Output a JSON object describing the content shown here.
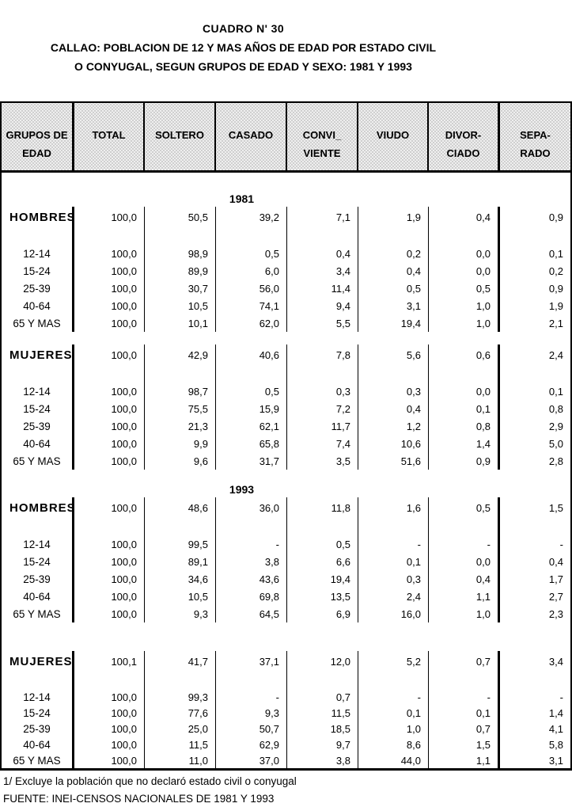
{
  "title": {
    "line1": "CUADRO N' 30",
    "line2": "CALLAO: POBLACION DE 12 Y MAS AÑOS DE EDAD POR ESTADO CIVIL",
    "line3": "O CONYUGAL, SEGUN GRUPOS DE EDAD Y SEXO: 1981 Y 1993"
  },
  "table": {
    "columns": [
      "GRUPOS DE\nEDAD",
      "TOTAL",
      "SOLTERO",
      "CASADO",
      "CONVI_\nVIENTE",
      "VIUDO",
      "DIVOR-\nCIADO",
      "SEPA-\nRADO"
    ],
    "sections": [
      {
        "year": "1981",
        "groups": [
          {
            "label": "HOMBRES",
            "values": [
              "100,0",
              "50,5",
              "39,2",
              "7,1",
              "1,9",
              "0,4",
              "0,9"
            ],
            "ages": [
              {
                "label": "12-14",
                "values": [
                  "100,0",
                  "98,9",
                  "0,5",
                  "0,4",
                  "0,2",
                  "0,0",
                  "0,1"
                ]
              },
              {
                "label": "15-24",
                "values": [
                  "100,0",
                  "89,9",
                  "6,0",
                  "3,4",
                  "0,4",
                  "0,0",
                  "0,2"
                ]
              },
              {
                "label": "25-39",
                "values": [
                  "100,0",
                  "30,7",
                  "56,0",
                  "11,4",
                  "0,5",
                  "0,5",
                  "0,9"
                ]
              },
              {
                "label": "40-64",
                "values": [
                  "100,0",
                  "10,5",
                  "74,1",
                  "9,4",
                  "3,1",
                  "1,0",
                  "1,9"
                ]
              },
              {
                "label": "65 Y MAS",
                "values": [
                  "100,0",
                  "10,1",
                  "62,0",
                  "5,5",
                  "19,4",
                  "1,0",
                  "2,1"
                ]
              }
            ]
          },
          {
            "label": "MUJERES",
            "values": [
              "100,0",
              "42,9",
              "40,6",
              "7,8",
              "5,6",
              "0,6",
              "2,4"
            ],
            "ages": [
              {
                "label": "12-14",
                "values": [
                  "100,0",
                  "98,7",
                  "0,5",
                  "0,3",
                  "0,3",
                  "0,0",
                  "0,1"
                ]
              },
              {
                "label": "15-24",
                "values": [
                  "100,0",
                  "75,5",
                  "15,9",
                  "7,2",
                  "0,4",
                  "0,1",
                  "0,8"
                ]
              },
              {
                "label": "25-39",
                "values": [
                  "100,0",
                  "21,3",
                  "62,1",
                  "11,7",
                  "1,2",
                  "0,8",
                  "2,9"
                ]
              },
              {
                "label": "40-64",
                "values": [
                  "100,0",
                  "9,9",
                  "65,8",
                  "7,4",
                  "10,6",
                  "1,4",
                  "5,0"
                ]
              },
              {
                "label": "65 Y MAS",
                "values": [
                  "100,0",
                  "9,6",
                  "31,7",
                  "3,5",
                  "51,6",
                  "0,9",
                  "2,8"
                ]
              }
            ]
          }
        ]
      },
      {
        "year": "1993",
        "groups": [
          {
            "label": "HOMBRES",
            "values": [
              "100,0",
              "48,6",
              "36,0",
              "11,8",
              "1,6",
              "0,5",
              "1,5"
            ],
            "ages": [
              {
                "label": "12-14",
                "values": [
                  "100,0",
                  "99,5",
                  "-",
                  "0,5",
                  "-",
                  "-",
                  "-"
                ]
              },
              {
                "label": "15-24",
                "values": [
                  "100,0",
                  "89,1",
                  "3,8",
                  "6,6",
                  "0,1",
                  "0,0",
                  "0,4"
                ]
              },
              {
                "label": "25-39",
                "values": [
                  "100,0",
                  "34,6",
                  "43,6",
                  "19,4",
                  "0,3",
                  "0,4",
                  "1,7"
                ]
              },
              {
                "label": "40-64",
                "values": [
                  "100,0",
                  "10,5",
                  "69,8",
                  "13,5",
                  "2,4",
                  "1,1",
                  "2,7"
                ]
              },
              {
                "label": "65 Y MAS",
                "values": [
                  "100,0",
                  "9,3",
                  "64,5",
                  "6,9",
                  "16,0",
                  "1,0",
                  "2,3"
                ]
              }
            ]
          },
          {
            "label": "MUJERES",
            "values": [
              "100,1",
              "41,7",
              "37,1",
              "12,0",
              "5,2",
              "0,7",
              "3,4"
            ],
            "ages": [
              {
                "label": "12-14",
                "values": [
                  "100,0",
                  "99,3",
                  "-",
                  "0,7",
                  "-",
                  "-",
                  "-"
                ]
              },
              {
                "label": "15-24",
                "values": [
                  "100,0",
                  "77,6",
                  "9,3",
                  "11,5",
                  "0,1",
                  "0,1",
                  "1,4"
                ]
              },
              {
                "label": "25-39",
                "values": [
                  "100,0",
                  "25,0",
                  "50,7",
                  "18,5",
                  "1,0",
                  "0,7",
                  "4,1"
                ]
              },
              {
                "label": "40-64",
                "values": [
                  "100,0",
                  "11,5",
                  "62,9",
                  "9,7",
                  "8,6",
                  "1,5",
                  "5,8"
                ]
              },
              {
                "label": "65 Y MAS",
                "values": [
                  "100,0",
                  "11,0",
                  "37,0",
                  "3,8",
                  "44,0",
                  "1,1",
                  "3,1"
                ]
              }
            ]
          }
        ]
      }
    ]
  },
  "footnotes": {
    "note1": "1/ Excluye la población que no declaró estado civil o conyugal",
    "source": "FUENTE: INEI-CENSOS NACIONALES DE 1981 Y 1993"
  }
}
